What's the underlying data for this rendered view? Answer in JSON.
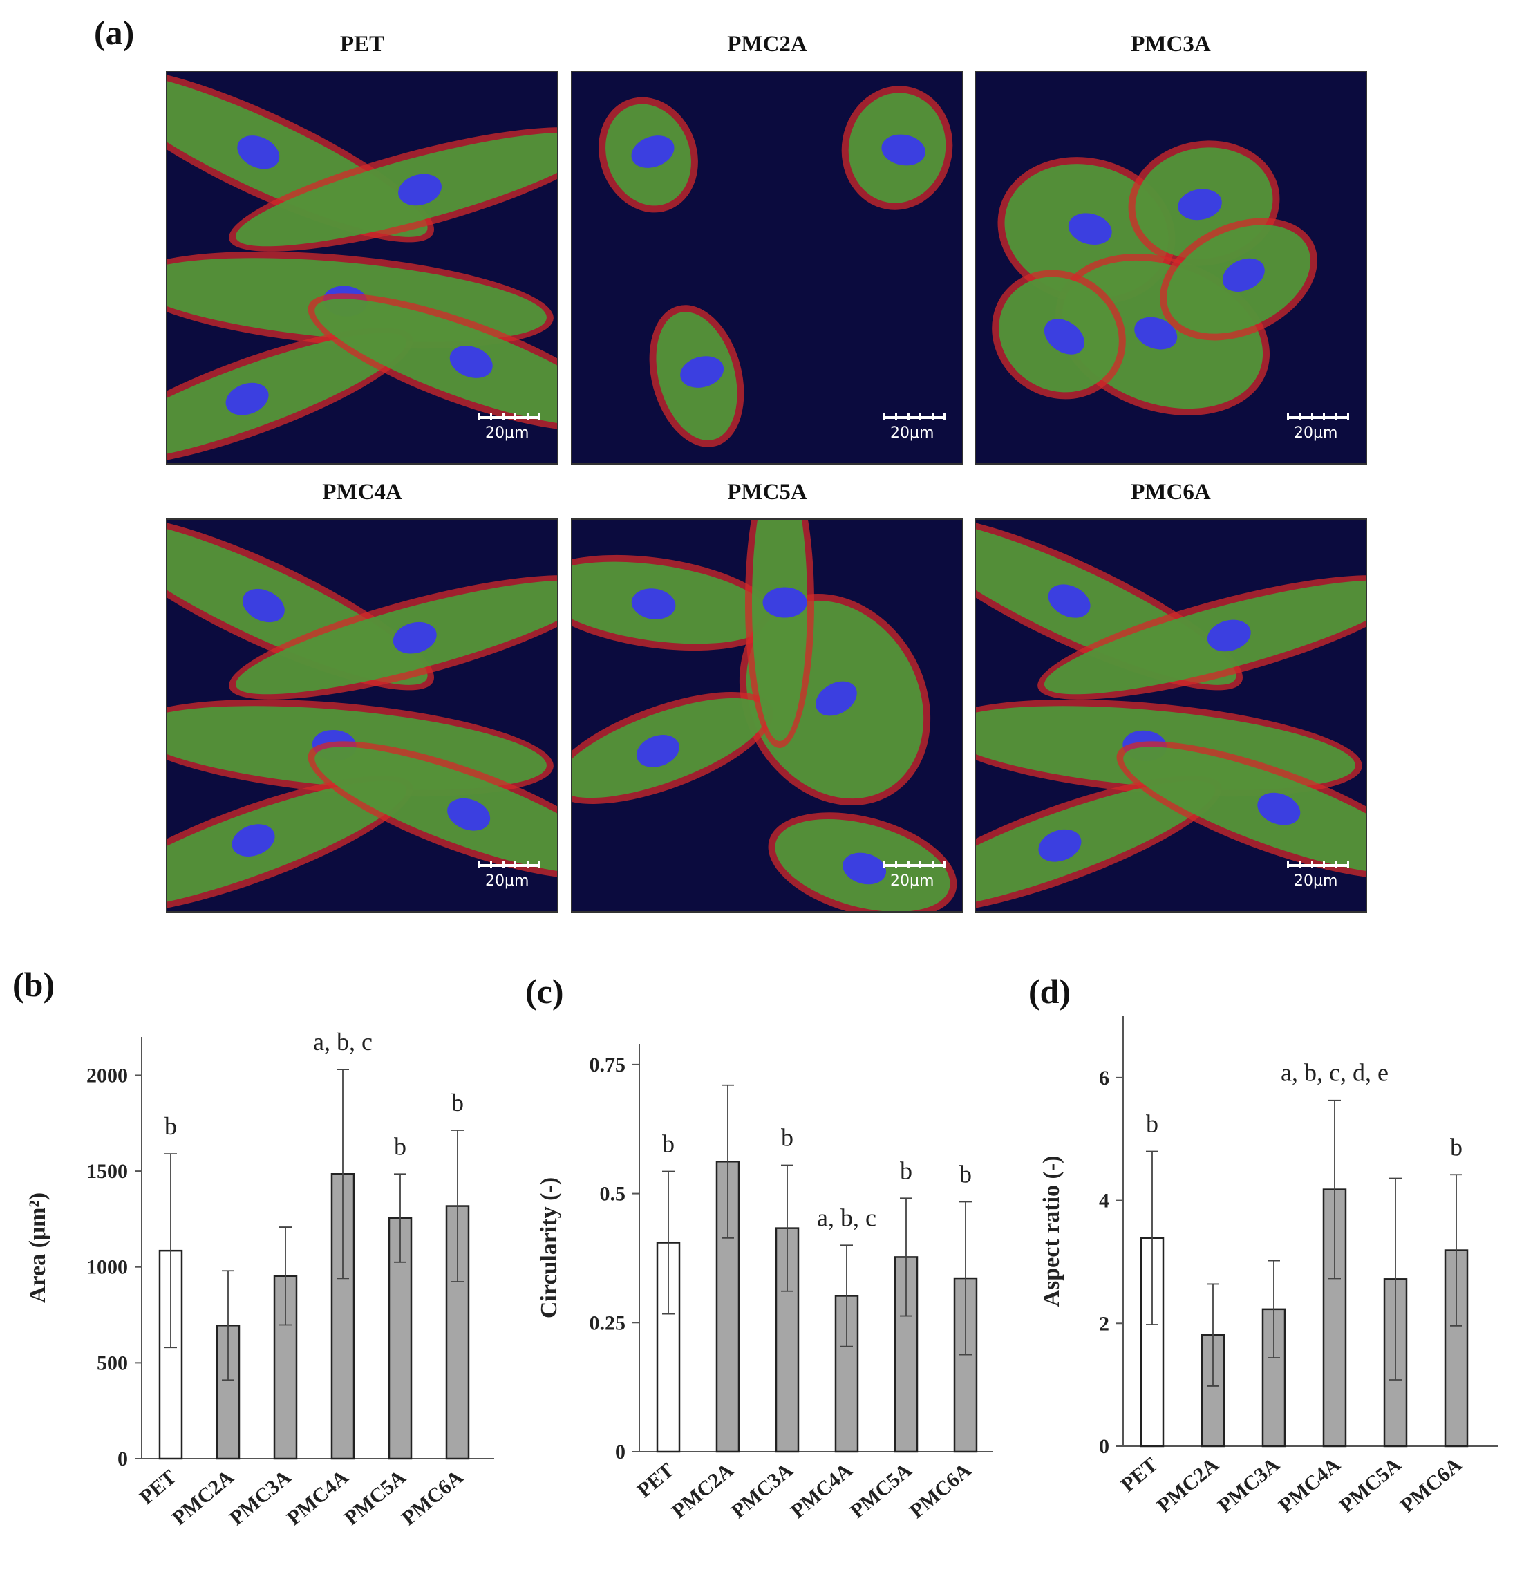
{
  "panel_a": {
    "letter": "(a)",
    "images": [
      {
        "title": "PET",
        "scale": "20μm",
        "cells": "elongated"
      },
      {
        "title": "PMC2A",
        "scale": "20μm",
        "cells": "sparse"
      },
      {
        "title": "PMC3A",
        "scale": "20μm",
        "cells": "spread"
      },
      {
        "title": "PMC4A",
        "scale": "20μm",
        "cells": "elongated"
      },
      {
        "title": "PMC5A",
        "scale": "20μm",
        "cells": "stellate"
      },
      {
        "title": "PMC6A",
        "scale": "20μm",
        "cells": "elongated"
      }
    ]
  },
  "colors": {
    "bar_control": "#ffffff",
    "bar_treated": "#a6a6a6",
    "bar_edge": "#222222",
    "axis": "#555555"
  },
  "chart_data": [
    {
      "letter": "(b)",
      "type": "bar",
      "categories": [
        "PET",
        "PMC2A",
        "PMC3A",
        "PMC4A",
        "PMC5A",
        "PMC6A"
      ],
      "values": [
        1085,
        695,
        953,
        1485,
        1255,
        1318
      ],
      "errors": [
        505,
        285,
        255,
        545,
        230,
        395
      ],
      "annotations": [
        "b",
        "",
        "",
        "a, b, c",
        "b",
        "b"
      ],
      "ylabel": "Area (μm²)",
      "ylim": [
        0,
        2200
      ],
      "yticks": [
        0,
        500,
        1000,
        1500,
        2000
      ],
      "ytick_labels": [
        "0",
        "500",
        "1000",
        "1500",
        "2000"
      ]
    },
    {
      "letter": "(c)",
      "type": "bar",
      "categories": [
        "PET",
        "PMC2A",
        "PMC3A",
        "PMC4A",
        "PMC5A",
        "PMC6A"
      ],
      "values": [
        0.405,
        0.562,
        0.433,
        0.302,
        0.377,
        0.336
      ],
      "errors": [
        0.138,
        0.148,
        0.122,
        0.098,
        0.114,
        0.148
      ],
      "annotations": [
        "b",
        "",
        "b",
        "a, b, c",
        "b",
        "b"
      ],
      "ylabel": "Circularity (-)",
      "ylim": [
        0,
        0.79
      ],
      "yticks": [
        0,
        0.25,
        0.5,
        0.75
      ],
      "ytick_labels": [
        "0",
        "0.25",
        "0.5",
        "0.75"
      ]
    },
    {
      "letter": "(d)",
      "type": "bar",
      "categories": [
        "PET",
        "PMC2A",
        "PMC3A",
        "PMC4A",
        "PMC5A",
        "PMC6A"
      ],
      "values": [
        3.39,
        1.81,
        2.23,
        4.18,
        2.72,
        3.19
      ],
      "errors": [
        1.41,
        0.83,
        0.79,
        1.45,
        1.64,
        1.23
      ],
      "annotations": [
        "b",
        "",
        "",
        "a, b, c, d, e",
        "",
        "b"
      ],
      "ylabel": "Aspect ratio (-)",
      "ylim": [
        0,
        7
      ],
      "yticks": [
        0,
        2,
        4,
        6
      ],
      "ytick_labels": [
        "0",
        "2",
        "4",
        "6"
      ]
    }
  ],
  "chart_letters": {
    "b": "(b)",
    "c": "(c)",
    "d": "(d)"
  }
}
